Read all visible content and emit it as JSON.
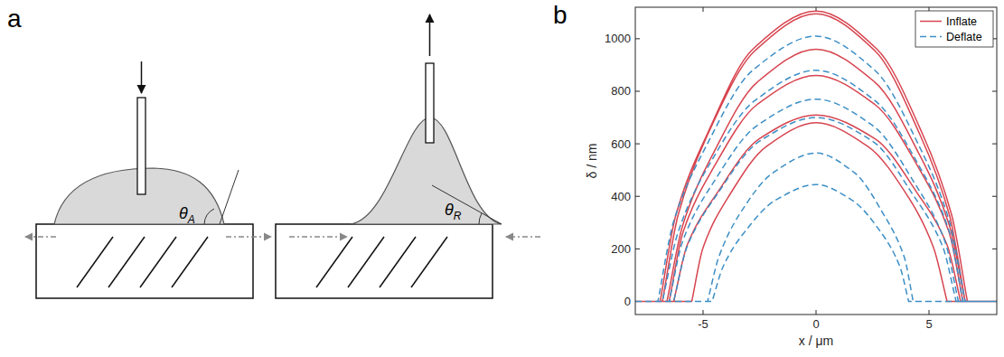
{
  "panel_labels": [
    "a",
    "b"
  ],
  "diagram": {
    "advancing": {
      "symbol": "θ",
      "sub": "A"
    },
    "receding": {
      "symbol": "θ",
      "sub": "R"
    }
  },
  "chart_data": {
    "type": "line",
    "xlabel": "x / μm",
    "ylabel": "δ / nm",
    "xlim": [
      -8,
      8
    ],
    "xticks": [
      -5,
      0,
      5
    ],
    "ylim": [
      -50,
      1120
    ],
    "yticks": [
      0,
      200,
      400,
      600,
      800,
      1000
    ],
    "legend": "upper right",
    "series": [
      {
        "name": "Inflate",
        "color": "#d7444f",
        "line_style": "solid",
        "x": [
          -8,
          -6.9,
          -6.2,
          -4.8,
          -2.8,
          0,
          2.7,
          4.7,
          6.0,
          6.7,
          8,
          null,
          -8,
          -6.8,
          -6.1,
          -4.8,
          -2.7,
          0,
          2.6,
          4.6,
          5.9,
          6.6,
          8,
          null,
          -8,
          -6.6,
          -5.9,
          -4.6,
          -2.6,
          0,
          2.6,
          4.6,
          5.9,
          6.6,
          8,
          null,
          -8,
          -6.5,
          -5.9,
          -4.6,
          -2.6,
          0,
          2.6,
          4.6,
          5.9,
          6.5,
          8,
          null,
          -8,
          -6.3,
          -5.7,
          -4.4,
          -2.5,
          0,
          2.6,
          4.5,
          5.8,
          6.4,
          8,
          null,
          -8,
          -5.5,
          -5.0,
          -3.9,
          -2.2,
          0,
          2.3,
          4.1,
          5.2,
          5.8,
          8
        ],
        "values": [
          0,
          0,
          330,
          640,
          960,
          1105,
          960,
          640,
          330,
          0,
          0,
          null,
          0,
          0,
          330,
          635,
          955,
          1095,
          955,
          635,
          330,
          0,
          0,
          null,
          0,
          0,
          290,
          555,
          835,
          960,
          835,
          555,
          290,
          0,
          0,
          null,
          0,
          0,
          260,
          500,
          750,
          860,
          750,
          500,
          260,
          0,
          0,
          null,
          0,
          0,
          215,
          410,
          620,
          710,
          620,
          410,
          215,
          0,
          0,
          null,
          0,
          0,
          205,
          395,
          590,
          680,
          590,
          395,
          205,
          0,
          0
        ]
      },
      {
        "name": "Deflate",
        "color": "#3d8fc6",
        "line_style": "dashed",
        "x": [
          -8,
          -7.0,
          -6.3,
          -4.9,
          -2.8,
          0,
          2.6,
          4.6,
          5.9,
          6.6,
          8,
          null,
          -8,
          -6.8,
          -6.1,
          -4.8,
          -2.7,
          0,
          2.6,
          4.6,
          5.9,
          6.5,
          8,
          null,
          -8,
          -6.5,
          -5.9,
          -4.6,
          -2.6,
          0,
          2.5,
          4.4,
          5.7,
          6.3,
          8,
          null,
          -8,
          -6.3,
          -5.7,
          -4.4,
          -2.5,
          0,
          2.5,
          4.3,
          5.6,
          6.2,
          8,
          null,
          -8,
          -4.8,
          -4.3,
          -3.4,
          -1.9,
          0,
          1.7,
          3.0,
          3.9,
          4.3,
          8,
          null,
          -8,
          -4.6,
          -4.1,
          -3.2,
          -1.8,
          0,
          1.6,
          2.9,
          3.7,
          4.1,
          8
        ],
        "values": [
          0,
          0,
          305,
          585,
          880,
          1010,
          880,
          585,
          305,
          0,
          0,
          null,
          0,
          0,
          265,
          510,
          765,
          880,
          765,
          510,
          265,
          0,
          0,
          null,
          0,
          0,
          230,
          445,
          670,
          770,
          670,
          445,
          230,
          0,
          0,
          null,
          0,
          0,
          210,
          405,
          610,
          700,
          610,
          405,
          210,
          0,
          0,
          null,
          0,
          0,
          170,
          330,
          490,
          565,
          490,
          330,
          170,
          0,
          0,
          null,
          0,
          0,
          135,
          260,
          385,
          445,
          385,
          260,
          135,
          0,
          0
        ]
      }
    ]
  }
}
